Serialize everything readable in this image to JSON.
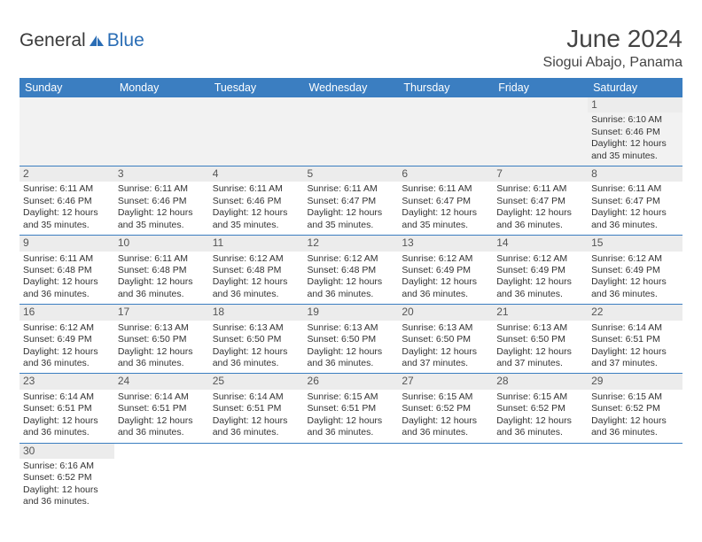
{
  "logo": {
    "part1": "General",
    "part2": "Blue"
  },
  "title": "June 2024",
  "subtitle": "Siogui Abajo, Panama",
  "colors": {
    "header_bg": "#3b7ec1",
    "header_text": "#ffffff",
    "daynum_bg": "#ececec",
    "border": "#3b7ec1",
    "logo_blue": "#2a6db5",
    "logo_gray": "#3a3a3a"
  },
  "weekdays": [
    "Sunday",
    "Monday",
    "Tuesday",
    "Wednesday",
    "Thursday",
    "Friday",
    "Saturday"
  ],
  "weeks": [
    [
      null,
      null,
      null,
      null,
      null,
      null,
      {
        "n": "1",
        "sr": "6:10 AM",
        "ss": "6:46 PM",
        "dl": "12 hours and 35 minutes."
      }
    ],
    [
      {
        "n": "2",
        "sr": "6:11 AM",
        "ss": "6:46 PM",
        "dl": "12 hours and 35 minutes."
      },
      {
        "n": "3",
        "sr": "6:11 AM",
        "ss": "6:46 PM",
        "dl": "12 hours and 35 minutes."
      },
      {
        "n": "4",
        "sr": "6:11 AM",
        "ss": "6:46 PM",
        "dl": "12 hours and 35 minutes."
      },
      {
        "n": "5",
        "sr": "6:11 AM",
        "ss": "6:47 PM",
        "dl": "12 hours and 35 minutes."
      },
      {
        "n": "6",
        "sr": "6:11 AM",
        "ss": "6:47 PM",
        "dl": "12 hours and 35 minutes."
      },
      {
        "n": "7",
        "sr": "6:11 AM",
        "ss": "6:47 PM",
        "dl": "12 hours and 36 minutes."
      },
      {
        "n": "8",
        "sr": "6:11 AM",
        "ss": "6:47 PM",
        "dl": "12 hours and 36 minutes."
      }
    ],
    [
      {
        "n": "9",
        "sr": "6:11 AM",
        "ss": "6:48 PM",
        "dl": "12 hours and 36 minutes."
      },
      {
        "n": "10",
        "sr": "6:11 AM",
        "ss": "6:48 PM",
        "dl": "12 hours and 36 minutes."
      },
      {
        "n": "11",
        "sr": "6:12 AM",
        "ss": "6:48 PM",
        "dl": "12 hours and 36 minutes."
      },
      {
        "n": "12",
        "sr": "6:12 AM",
        "ss": "6:48 PM",
        "dl": "12 hours and 36 minutes."
      },
      {
        "n": "13",
        "sr": "6:12 AM",
        "ss": "6:49 PM",
        "dl": "12 hours and 36 minutes."
      },
      {
        "n": "14",
        "sr": "6:12 AM",
        "ss": "6:49 PM",
        "dl": "12 hours and 36 minutes."
      },
      {
        "n": "15",
        "sr": "6:12 AM",
        "ss": "6:49 PM",
        "dl": "12 hours and 36 minutes."
      }
    ],
    [
      {
        "n": "16",
        "sr": "6:12 AM",
        "ss": "6:49 PM",
        "dl": "12 hours and 36 minutes."
      },
      {
        "n": "17",
        "sr": "6:13 AM",
        "ss": "6:50 PM",
        "dl": "12 hours and 36 minutes."
      },
      {
        "n": "18",
        "sr": "6:13 AM",
        "ss": "6:50 PM",
        "dl": "12 hours and 36 minutes."
      },
      {
        "n": "19",
        "sr": "6:13 AM",
        "ss": "6:50 PM",
        "dl": "12 hours and 36 minutes."
      },
      {
        "n": "20",
        "sr": "6:13 AM",
        "ss": "6:50 PM",
        "dl": "12 hours and 37 minutes."
      },
      {
        "n": "21",
        "sr": "6:13 AM",
        "ss": "6:50 PM",
        "dl": "12 hours and 37 minutes."
      },
      {
        "n": "22",
        "sr": "6:14 AM",
        "ss": "6:51 PM",
        "dl": "12 hours and 37 minutes."
      }
    ],
    [
      {
        "n": "23",
        "sr": "6:14 AM",
        "ss": "6:51 PM",
        "dl": "12 hours and 36 minutes."
      },
      {
        "n": "24",
        "sr": "6:14 AM",
        "ss": "6:51 PM",
        "dl": "12 hours and 36 minutes."
      },
      {
        "n": "25",
        "sr": "6:14 AM",
        "ss": "6:51 PM",
        "dl": "12 hours and 36 minutes."
      },
      {
        "n": "26",
        "sr": "6:15 AM",
        "ss": "6:51 PM",
        "dl": "12 hours and 36 minutes."
      },
      {
        "n": "27",
        "sr": "6:15 AM",
        "ss": "6:52 PM",
        "dl": "12 hours and 36 minutes."
      },
      {
        "n": "28",
        "sr": "6:15 AM",
        "ss": "6:52 PM",
        "dl": "12 hours and 36 minutes."
      },
      {
        "n": "29",
        "sr": "6:15 AM",
        "ss": "6:52 PM",
        "dl": "12 hours and 36 minutes."
      }
    ],
    [
      {
        "n": "30",
        "sr": "6:16 AM",
        "ss": "6:52 PM",
        "dl": "12 hours and 36 minutes."
      },
      null,
      null,
      null,
      null,
      null,
      null
    ]
  ],
  "labels": {
    "sunrise": "Sunrise:",
    "sunset": "Sunset:",
    "daylight": "Daylight:"
  }
}
